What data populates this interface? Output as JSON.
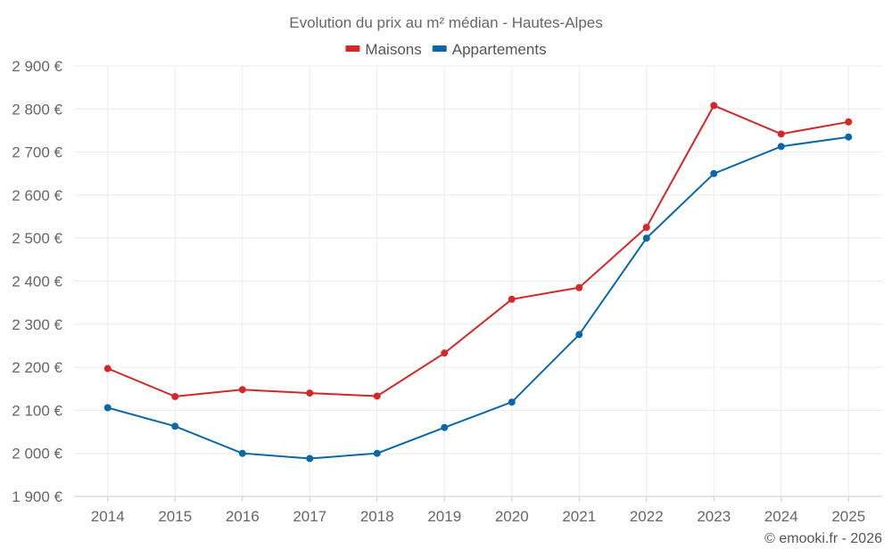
{
  "chart_data": {
    "type": "line",
    "title": "Evolution du prix au m² médian - Hautes-Alpes",
    "x": [
      "2014",
      "2015",
      "2016",
      "2017",
      "2018",
      "2019",
      "2020",
      "2021",
      "2022",
      "2023",
      "2024",
      "2025"
    ],
    "series": [
      {
        "name": "Maisons",
        "color": "#d62728",
        "values": [
          2197,
          2132,
          2148,
          2140,
          2133,
          2233,
          2358,
          2385,
          2525,
          2808,
          2742,
          2770
        ]
      },
      {
        "name": "Appartements",
        "color": "#0868a8",
        "values": [
          2106,
          2063,
          2000,
          1988,
          2000,
          2060,
          2119,
          2276,
          2500,
          2650,
          2713,
          2735
        ]
      }
    ],
    "ylim": [
      1900,
      2900
    ],
    "yticks": [
      1900,
      2000,
      2100,
      2200,
      2300,
      2400,
      2500,
      2600,
      2700,
      2800,
      2900
    ],
    "ytick_labels": [
      "1 900 €",
      "2 000 €",
      "2 100 €",
      "2 200 €",
      "2 300 €",
      "2 400 €",
      "2 500 €",
      "2 600 €",
      "2 700 €",
      "2 800 €",
      "2 900 €"
    ],
    "legend_position": "top",
    "grid": true
  },
  "credit": "© emooki.fr - 2026"
}
